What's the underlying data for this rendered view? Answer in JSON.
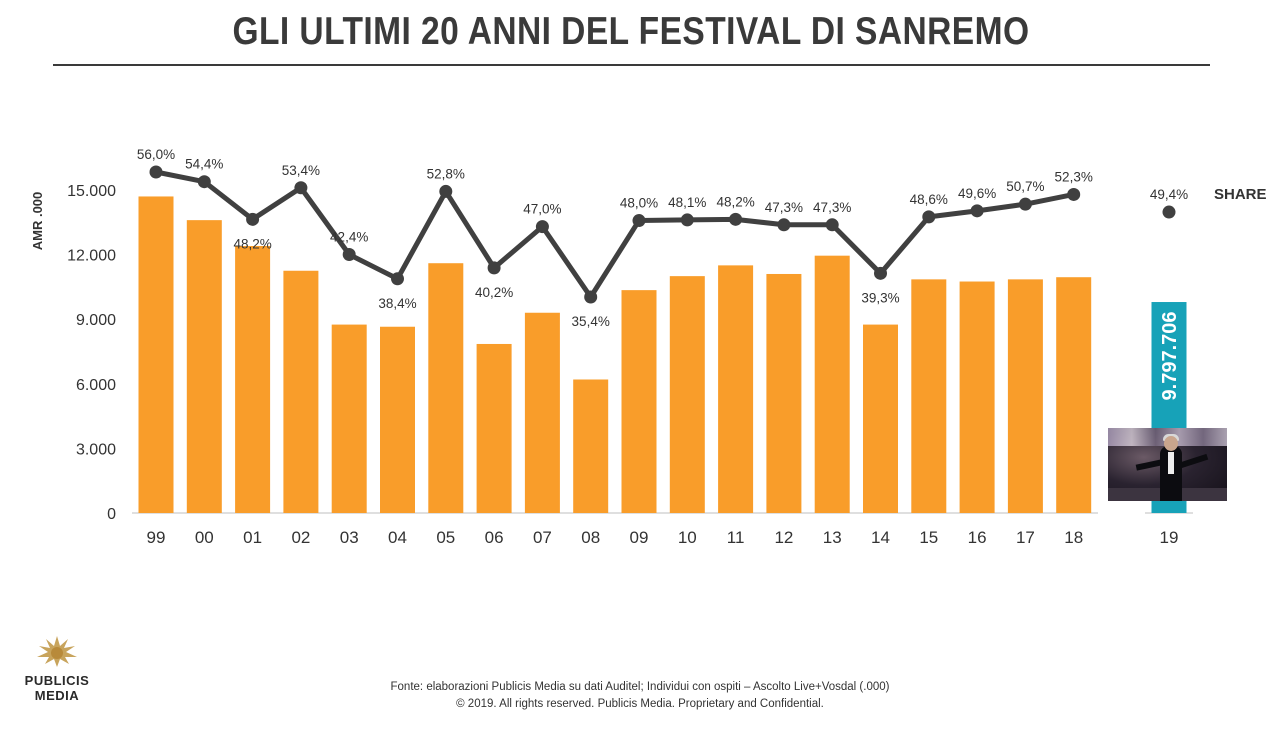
{
  "title": "GLI ULTIMI 20 ANNI DEL FESTIVAL DI SANREMO",
  "footer": {
    "source": "Fonte: elaborazioni Publicis Media su dati Auditel; Individui con ospiti – Ascolto Live+Vosdal (.000)",
    "copyright": "© 2019. All rights reserved. Publicis Media. Proprietary and Confidential."
  },
  "logo": {
    "line1": "PUBLICIS",
    "line2": "MEDIA"
  },
  "colors": {
    "bar": "#f99d2a",
    "line": "#404040",
    "highlight": "#17a2b8",
    "text": "#333333",
    "axis": "#bfbfbf"
  },
  "chart_data": {
    "type": "bar",
    "ylabel": "AMR .000",
    "ylim": [
      0,
      15000
    ],
    "yticks": [
      "0",
      "3.000",
      "6.000",
      "9.000",
      "12.000",
      "15.000"
    ],
    "yticks_values": [
      0,
      3000,
      6000,
      9000,
      12000,
      15000
    ],
    "categories": [
      "99",
      "00",
      "01",
      "02",
      "03",
      "04",
      "05",
      "06",
      "07",
      "08",
      "09",
      "10",
      "11",
      "12",
      "13",
      "14",
      "15",
      "16",
      "17",
      "18",
      "19"
    ],
    "series": [
      {
        "type": "bar",
        "values": [
          14700,
          13600,
          12400,
          11250,
          8750,
          8650,
          11600,
          7850,
          9300,
          6200,
          10350,
          11000,
          11500,
          11100,
          11950,
          8750,
          10850,
          10750,
          10850,
          10950,
          9797.706
        ]
      },
      {
        "name": "SHARE",
        "type": "line",
        "values": [
          56.0,
          54.4,
          48.2,
          53.4,
          42.4,
          38.4,
          52.8,
          40.2,
          47.0,
          35.4,
          48.0,
          48.1,
          48.2,
          47.3,
          47.3,
          39.3,
          48.6,
          49.6,
          50.7,
          52.3,
          49.4
        ],
        "labels": [
          "56,0%",
          "54,4%",
          "48,2%",
          "53,4%",
          "42,4%",
          "38,4%",
          "52,8%",
          "40,2%",
          "47,0%",
          "35,4%",
          "48,0%",
          "48,1%",
          "48,2%",
          "47,3%",
          "47,3%",
          "39,3%",
          "48,6%",
          "49,6%",
          "50,7%",
          "52,3%",
          "49,4%"
        ]
      }
    ],
    "highlight_label": "9.797.706"
  }
}
